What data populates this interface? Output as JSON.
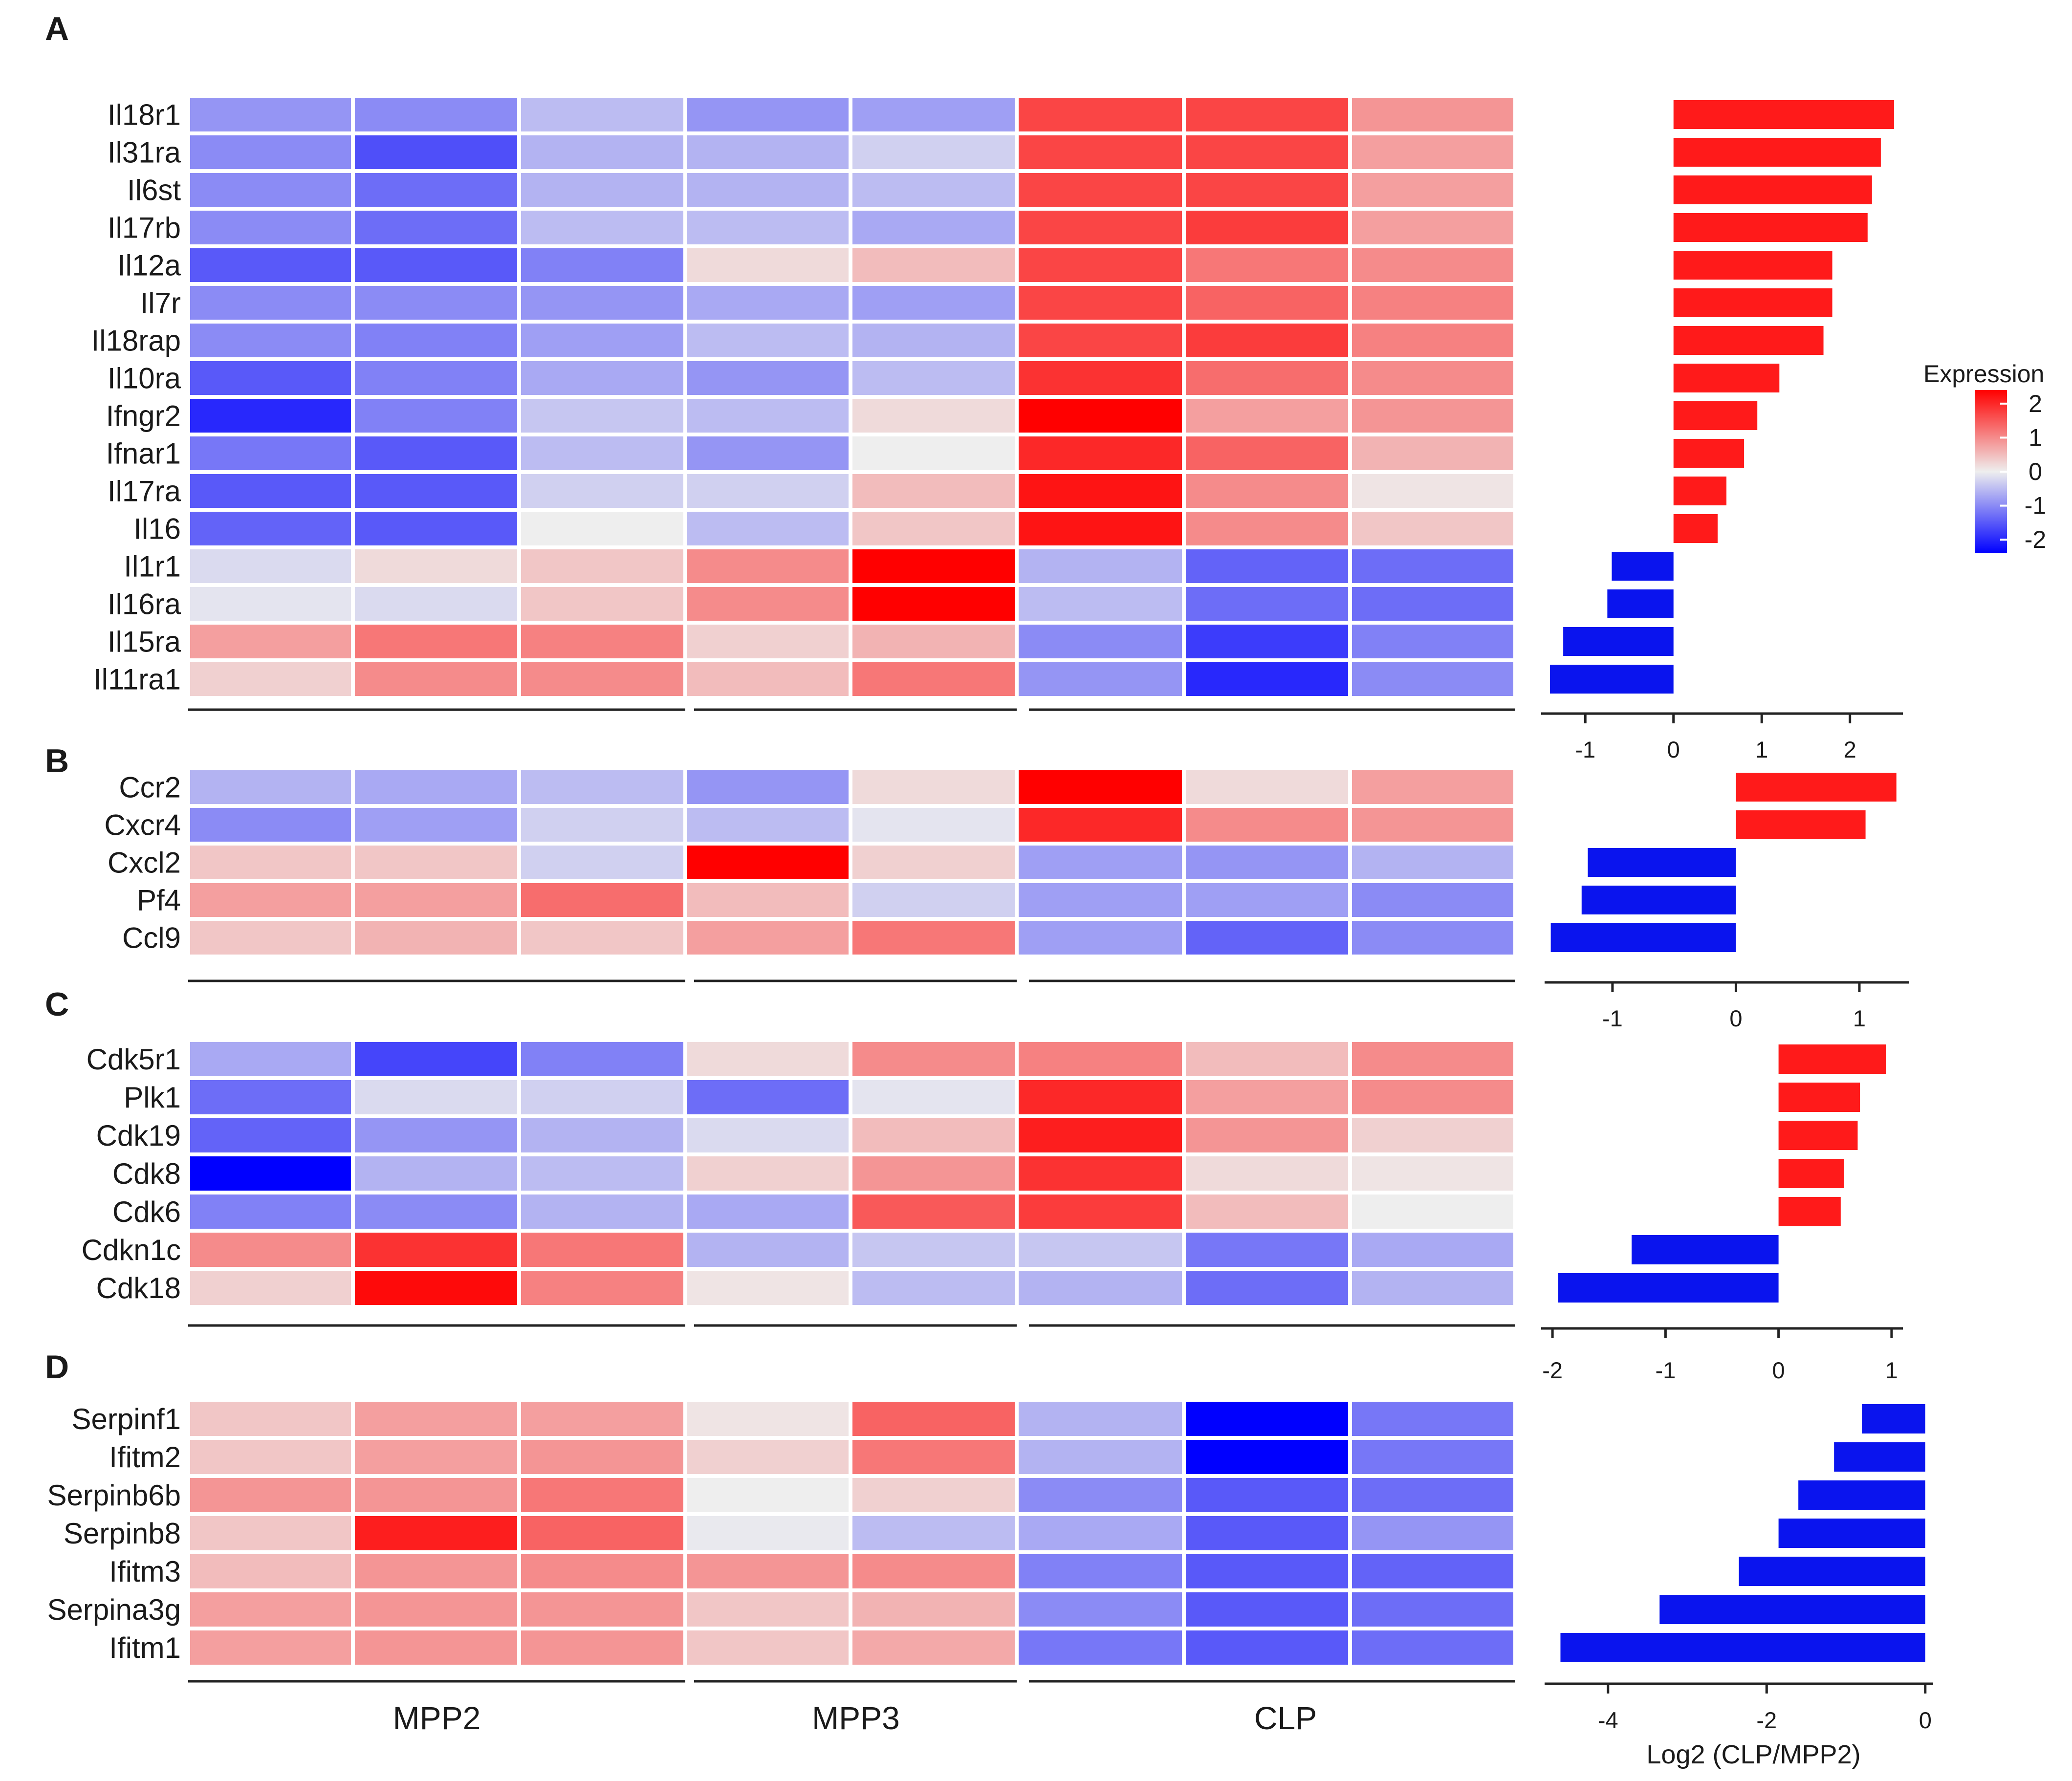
{
  "chart_data": [
    {
      "panel": "A",
      "type": "heatmap",
      "genes": [
        "Il18r1",
        "Il31ra",
        "Il6st",
        "Il17rb",
        "Il12a",
        "Il7r",
        "Il18rap",
        "Il10ra",
        "Ifngr2",
        "Ifnar1",
        "Il17ra",
        "Il16",
        "Il1r1",
        "Il16ra",
        "Il15ra",
        "Il11ra1"
      ],
      "groups": [
        "MPP2",
        "MPP3",
        "CLP"
      ],
      "columns_per_group": [
        3,
        2,
        3
      ],
      "matrix": [
        [
          -0.9,
          -1.0,
          -0.5,
          -0.9,
          -0.8,
          1.7,
          1.7,
          0.9
        ],
        [
          -1.0,
          -1.6,
          -0.6,
          -0.6,
          -0.3,
          1.7,
          1.7,
          0.8
        ],
        [
          -1.0,
          -1.3,
          -0.6,
          -0.6,
          -0.5,
          1.7,
          1.7,
          0.8
        ],
        [
          -1.0,
          -1.3,
          -0.5,
          -0.5,
          -0.7,
          1.7,
          1.8,
          0.8
        ],
        [
          -1.5,
          -1.5,
          -1.1,
          0.2,
          0.5,
          1.7,
          1.2,
          1.0
        ],
        [
          -1.0,
          -1.0,
          -0.9,
          -0.7,
          -0.8,
          1.7,
          1.4,
          1.1
        ],
        [
          -1.0,
          -1.1,
          -0.8,
          -0.5,
          -0.6,
          1.7,
          1.8,
          1.1
        ],
        [
          -1.5,
          -1.1,
          -0.7,
          -0.9,
          -0.5,
          1.9,
          1.3,
          1.0
        ],
        [
          -2.0,
          -1.1,
          -0.4,
          -0.5,
          0.2,
          2.4,
          0.8,
          0.9
        ],
        [
          -1.2,
          -1.5,
          -0.5,
          -0.9,
          0.0,
          2.0,
          1.4,
          0.6
        ],
        [
          -1.5,
          -1.5,
          -0.3,
          -0.3,
          0.5,
          2.2,
          1.0,
          0.1
        ],
        [
          -1.4,
          -1.5,
          0.0,
          -0.5,
          0.4,
          2.2,
          1.0,
          0.4
        ],
        [
          -0.2,
          0.2,
          0.4,
          1.0,
          2.4,
          -0.6,
          -1.4,
          -1.3
        ],
        [
          -0.1,
          -0.2,
          0.4,
          1.0,
          2.4,
          -0.5,
          -1.3,
          -1.3
        ],
        [
          0.8,
          1.2,
          1.1,
          0.3,
          0.6,
          -1.0,
          -1.8,
          -1.1
        ],
        [
          0.3,
          1.0,
          1.0,
          0.5,
          1.2,
          -0.9,
          -2.0,
          -1.0
        ]
      ],
      "fold_change": [
        2.5,
        2.35,
        2.25,
        2.2,
        1.8,
        1.8,
        1.7,
        1.2,
        0.95,
        0.8,
        0.6,
        0.5,
        -0.7,
        -0.75,
        -1.25,
        -1.4
      ],
      "x_ticks": [
        -1,
        0,
        1,
        2
      ],
      "xlim": [
        -1.5,
        2.6
      ]
    },
    {
      "panel": "B",
      "type": "heatmap",
      "genes": [
        "Ccr2",
        "Cxcr4",
        "Cxcl2",
        "Pf4",
        "Ccl9"
      ],
      "groups": [
        "MPP2",
        "MPP3",
        "CLP"
      ],
      "columns_per_group": [
        3,
        2,
        3
      ],
      "matrix": [
        [
          -0.6,
          -0.7,
          -0.5,
          -0.9,
          0.2,
          2.4,
          0.2,
          0.8
        ],
        [
          -1.0,
          -0.8,
          -0.3,
          -0.5,
          -0.1,
          2.0,
          1.0,
          0.9
        ],
        [
          0.4,
          0.4,
          -0.3,
          2.4,
          0.3,
          -0.8,
          -0.9,
          -0.6
        ],
        [
          0.8,
          0.8,
          1.3,
          0.5,
          -0.3,
          -0.8,
          -0.8,
          -1.0
        ],
        [
          0.4,
          0.6,
          0.4,
          0.8,
          1.2,
          -0.8,
          -1.4,
          -1.0
        ]
      ],
      "fold_change": [
        1.3,
        1.05,
        -1.2,
        -1.25,
        -1.5
      ],
      "x_ticks": [
        -1,
        0,
        1
      ],
      "xlim": [
        -1.55,
        1.4
      ]
    },
    {
      "panel": "C",
      "type": "heatmap",
      "genes": [
        "Cdk5r1",
        "Plk1",
        "Cdk19",
        "Cdk8",
        "Cdk6",
        "Cdkn1c",
        "Cdk18"
      ],
      "groups": [
        "MPP2",
        "MPP3",
        "CLP"
      ],
      "columns_per_group": [
        3,
        2,
        3
      ],
      "matrix": [
        [
          -0.7,
          -1.7,
          -1.1,
          0.2,
          1.0,
          1.1,
          0.5,
          1.0
        ],
        [
          -1.3,
          -0.2,
          -0.3,
          -1.3,
          -0.1,
          2.0,
          0.8,
          1.0
        ],
        [
          -1.4,
          -0.9,
          -0.6,
          -0.2,
          0.5,
          2.1,
          0.9,
          0.3
        ],
        [
          -2.4,
          -0.6,
          -0.5,
          0.3,
          0.9,
          1.9,
          0.2,
          0.1
        ],
        [
          -1.1,
          -1.0,
          -0.6,
          -0.7,
          1.5,
          1.8,
          0.5,
          0.0
        ],
        [
          1.0,
          1.9,
          1.2,
          -0.6,
          -0.4,
          -0.4,
          -1.2,
          -0.7
        ],
        [
          0.3,
          2.3,
          1.1,
          0.1,
          -0.5,
          -0.6,
          -1.3,
          -0.6
        ]
      ],
      "fold_change": [
        0.95,
        0.72,
        0.7,
        0.58,
        0.55,
        -1.3,
        -1.95
      ],
      "x_ticks": [
        -2,
        -1,
        0,
        1
      ],
      "xlim": [
        -2.1,
        1.1
      ]
    },
    {
      "panel": "D",
      "type": "heatmap",
      "genes": [
        "Serpinf1",
        "Ifitm2",
        "Serpinb6b",
        "Serpinb8",
        "Ifitm3",
        "Serpina3g",
        "Ifitm1"
      ],
      "groups": [
        "MPP2",
        "MPP3",
        "CLP"
      ],
      "columns_per_group": [
        3,
        2,
        3
      ],
      "matrix": [
        [
          0.4,
          0.8,
          0.8,
          0.1,
          1.4,
          -0.6,
          -2.4,
          -1.2
        ],
        [
          0.4,
          0.8,
          0.9,
          0.3,
          1.2,
          -0.6,
          -2.4,
          -1.2
        ],
        [
          0.9,
          0.9,
          1.2,
          0.0,
          0.3,
          -1.0,
          -1.5,
          -1.3
        ],
        [
          0.4,
          2.1,
          1.4,
          -0.05,
          -0.5,
          -0.7,
          -1.5,
          -0.9
        ],
        [
          0.5,
          0.9,
          1.0,
          0.9,
          1.0,
          -1.1,
          -1.5,
          -1.4
        ],
        [
          0.8,
          0.9,
          0.9,
          0.4,
          0.6,
          -1.0,
          -1.5,
          -1.3
        ],
        [
          0.8,
          0.9,
          0.9,
          0.4,
          0.7,
          -1.2,
          -1.5,
          -1.3
        ]
      ],
      "fold_change": [
        -0.8,
        -1.15,
        -1.6,
        -1.85,
        -2.35,
        -3.35,
        -4.6
      ],
      "x_ticks": [
        -4,
        -2,
        0
      ],
      "xlim": [
        -4.8,
        0.1
      ],
      "xlabel": "Log2 (CLP/MPP2)"
    }
  ],
  "legend": {
    "title": "Expression",
    "ticks": [
      2,
      1,
      0,
      -1,
      -2
    ],
    "range": [
      -2.4,
      2.4
    ]
  },
  "colors": {
    "high": "#ff0000",
    "mid": "#eeeeee",
    "low": "#0000ff",
    "upregulated_bar": "#ff1a1a",
    "downregulated_bar": "#0a14ee",
    "axis": "#222222"
  }
}
